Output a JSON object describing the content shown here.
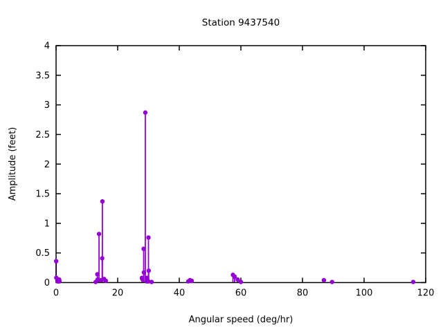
{
  "window": {
    "background": "#FFFFFF",
    "text_color": "#000000",
    "border_color": "#000000"
  },
  "chart_data": {
    "type": "stem",
    "title": "Station 9437540",
    "xlabel": "Angular speed (deg/hr)",
    "ylabel": "Amplitude (feet)",
    "xlim": [
      0,
      120
    ],
    "ylim": [
      0,
      4
    ],
    "grid": false,
    "legend_position": "none",
    "series_color": "#9400D3",
    "marker": "filled-circle",
    "style": "impulses-with-points",
    "xticks": {
      "values": [
        0,
        20,
        40,
        60,
        80,
        100,
        120
      ],
      "labels": [
        "0",
        "20",
        "40",
        "60",
        "80",
        "100",
        "120"
      ]
    },
    "yticks": {
      "values": [
        0,
        0.5,
        1,
        1.5,
        2,
        2.5,
        3,
        3.5,
        4
      ],
      "labels": [
        "0",
        "0.5",
        "1",
        "1.5",
        "2",
        "2.5",
        "3",
        "3.5",
        "4"
      ]
    },
    "points": [
      [
        0.04,
        0.36
      ],
      [
        0.08,
        0.08
      ],
      [
        0.54,
        0.02
      ],
      [
        1.02,
        0.05
      ],
      [
        1.1,
        0.02
      ],
      [
        12.85,
        0.01
      ],
      [
        13.4,
        0.14
      ],
      [
        13.47,
        0.05
      ],
      [
        13.94,
        0.82
      ],
      [
        14.49,
        0.04
      ],
      [
        14.96,
        0.41
      ],
      [
        15.04,
        1.37
      ],
      [
        15.59,
        0.06
      ],
      [
        16.14,
        0.03
      ],
      [
        27.9,
        0.08
      ],
      [
        27.97,
        0.06
      ],
      [
        28.44,
        0.57
      ],
      [
        28.51,
        0.17
      ],
      [
        28.98,
        2.87
      ],
      [
        29.46,
        0.02
      ],
      [
        29.53,
        0.08
      ],
      [
        29.96,
        0.02
      ],
      [
        30.0,
        0.76
      ],
      [
        30.08,
        0.2
      ],
      [
        31.02,
        0.01
      ],
      [
        42.93,
        0.02
      ],
      [
        43.48,
        0.04
      ],
      [
        44.03,
        0.03
      ],
      [
        57.42,
        0.13
      ],
      [
        57.97,
        0.1
      ],
      [
        58.98,
        0.05
      ],
      [
        60.0,
        0.01
      ],
      [
        86.95,
        0.04
      ],
      [
        89.6,
        0.01
      ],
      [
        115.94,
        0.01
      ]
    ]
  }
}
